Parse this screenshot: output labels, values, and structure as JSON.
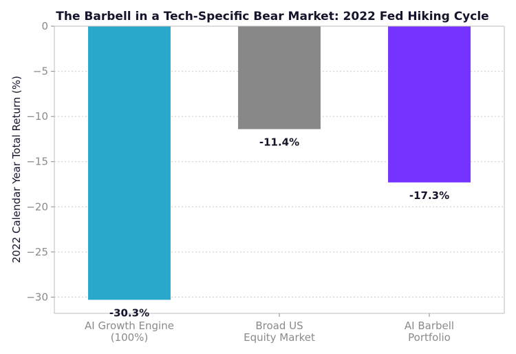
{
  "chart_data": {
    "type": "bar",
    "title": "The Barbell in a Tech-Specific Bear Market: 2022 Fed Hiking Cycle",
    "ylabel": "2022 Calendar Year Total Return (%)",
    "xlabel": "",
    "categories": [
      [
        "AI Growth Engine",
        "(100%)"
      ],
      [
        "Broad US",
        "Equity Market"
      ],
      [
        "AI Barbell",
        "Portfolio"
      ]
    ],
    "values": [
      -30.3,
      -11.4,
      -17.3
    ],
    "data_labels": [
      "-30.3%",
      "-11.4%",
      "-17.3%"
    ],
    "colors": [
      "#2aa8cb",
      "#898888",
      "#7433fe"
    ],
    "ylim": [
      -31.8,
      0
    ],
    "yticks": [
      0,
      -5,
      -10,
      -15,
      -20,
      -25,
      -30
    ],
    "ytick_labels": [
      "0",
      "−5",
      "−10",
      "−15",
      "−20",
      "−25",
      "−30"
    ],
    "grid": "horizontal dotted",
    "legend": "none"
  }
}
